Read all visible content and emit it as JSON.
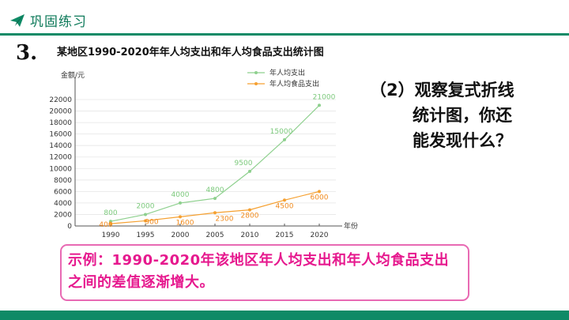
{
  "header": {
    "title": "巩固练习"
  },
  "question": {
    "number": "3.",
    "prompt_line1": "（2）观察复式折线",
    "prompt_line2": "统计图，你还",
    "prompt_line3": "能发现什么？"
  },
  "answer": {
    "text": "示例：1990-2020年该地区年人均支出和年人均食品支出之间的差值逐渐增大。"
  },
  "colors": {
    "accent": "#0f8a66",
    "series_total": "#8ed08e",
    "series_food": "#f5a030",
    "answer": "#e6198e"
  },
  "chart_data": {
    "type": "line",
    "title": "某地区1990-2020年年人均支出和年人均食品支出统计图",
    "ylabel": "金额/元",
    "xlabel": "年份",
    "x": [
      "1990",
      "1995",
      "2000",
      "2005",
      "2010",
      "2015",
      "2020"
    ],
    "yticks": [
      0,
      2000,
      4000,
      6000,
      8000,
      10000,
      12000,
      14000,
      16000,
      18000,
      20000,
      22000
    ],
    "ylim": [
      0,
      22000
    ],
    "grid": true,
    "legend": "top",
    "series": [
      {
        "name": "年人均支出",
        "values": [
          800,
          2000,
          4000,
          4800,
          9500,
          15000,
          21000
        ],
        "labels": [
          "800",
          "2000",
          "4000",
          "4800",
          "9500",
          "15000",
          "21000"
        ]
      },
      {
        "name": "年人均食品支出",
        "values": [
          400,
          900,
          1600,
          2300,
          2800,
          4500,
          6000
        ],
        "labels": [
          "400",
          "900",
          "1600",
          "2300",
          "2800",
          "4500",
          "6000"
        ]
      }
    ]
  }
}
